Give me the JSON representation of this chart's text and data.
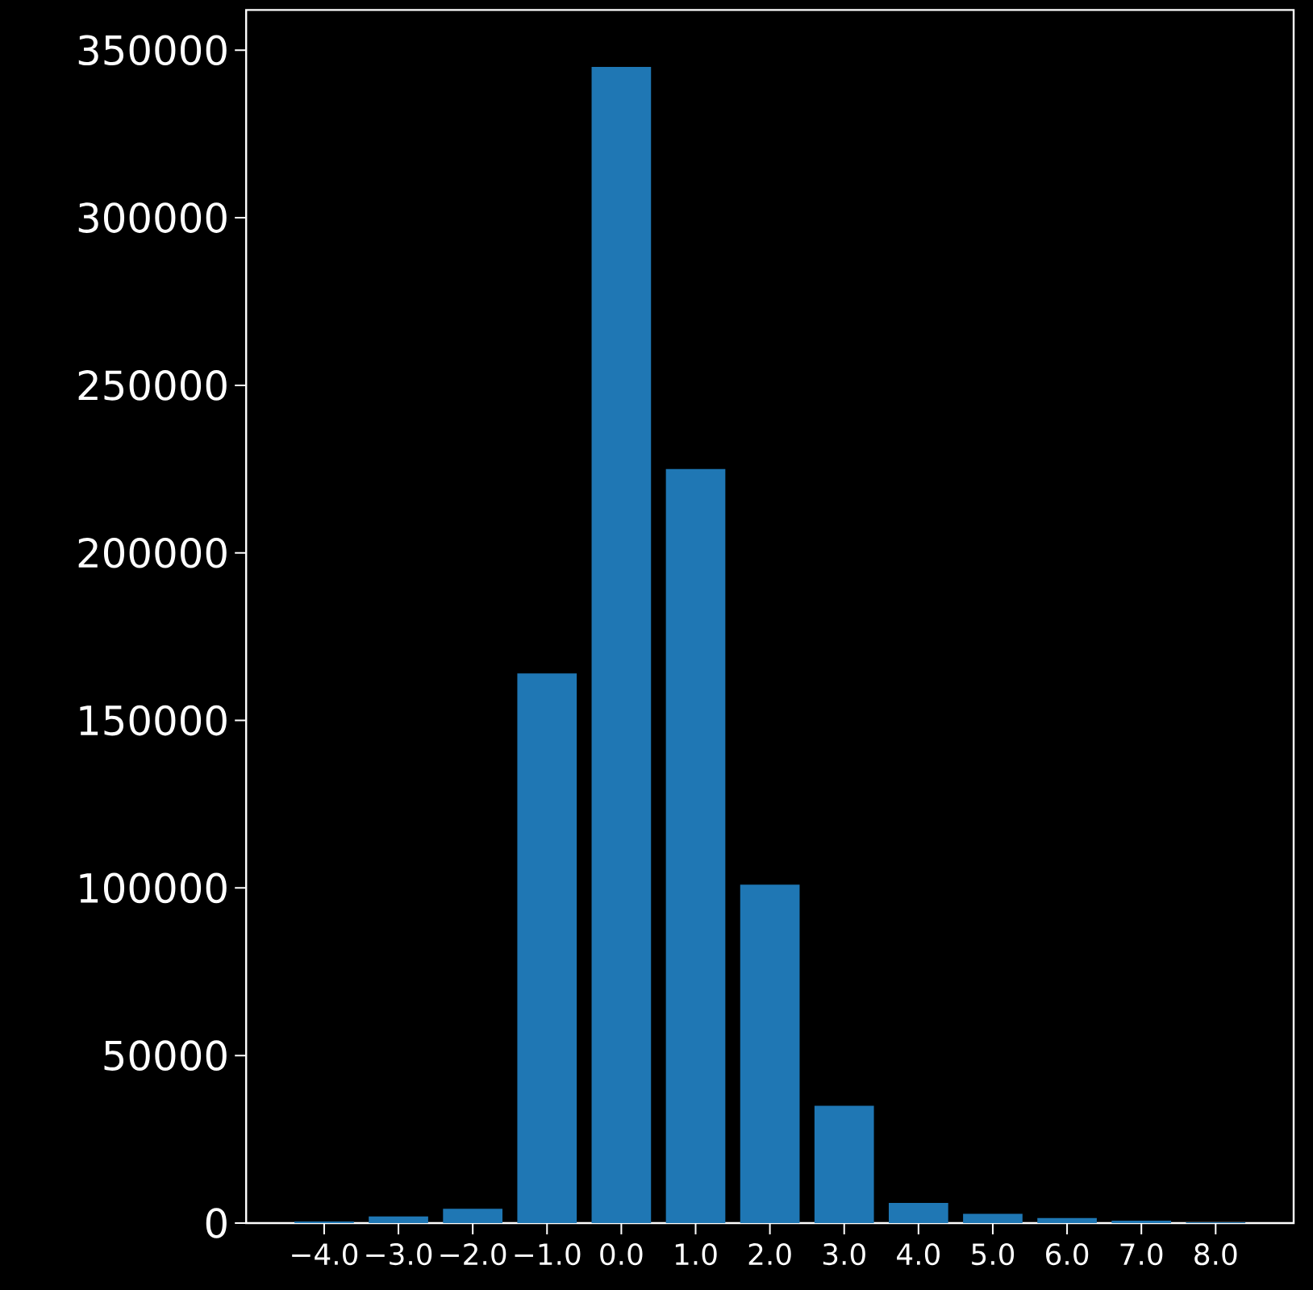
{
  "chart_data": {
    "type": "bar",
    "x": [
      -4,
      -3,
      -2,
      -1,
      0,
      1,
      2,
      3,
      4,
      5,
      6,
      7,
      8
    ],
    "values": [
      500,
      2000,
      4250,
      164000,
      345000,
      225000,
      101000,
      35000,
      6000,
      2750,
      1500,
      750,
      250
    ],
    "color": "#1f77b4",
    "xlim": [
      -5.05,
      9.05
    ],
    "xticks": [
      {
        "value": -4,
        "label": "−4.0"
      },
      {
        "value": -3,
        "label": "−3.0"
      },
      {
        "value": -2,
        "label": "−2.0"
      },
      {
        "value": -1,
        "label": "−1.0"
      },
      {
        "value": 0,
        "label": "0.0"
      },
      {
        "value": 1,
        "label": "1.0"
      },
      {
        "value": 2,
        "label": "2.0"
      },
      {
        "value": 3,
        "label": "3.0"
      },
      {
        "value": 4,
        "label": "4.0"
      },
      {
        "value": 5,
        "label": "5.0"
      },
      {
        "value": 6,
        "label": "6.0"
      },
      {
        "value": 7,
        "label": "7.0"
      },
      {
        "value": 8,
        "label": "8.0"
      }
    ],
    "ylim": [
      0,
      362000
    ],
    "yticks": [
      0,
      50000,
      100000,
      150000,
      200000,
      250000,
      300000,
      350000
    ]
  }
}
